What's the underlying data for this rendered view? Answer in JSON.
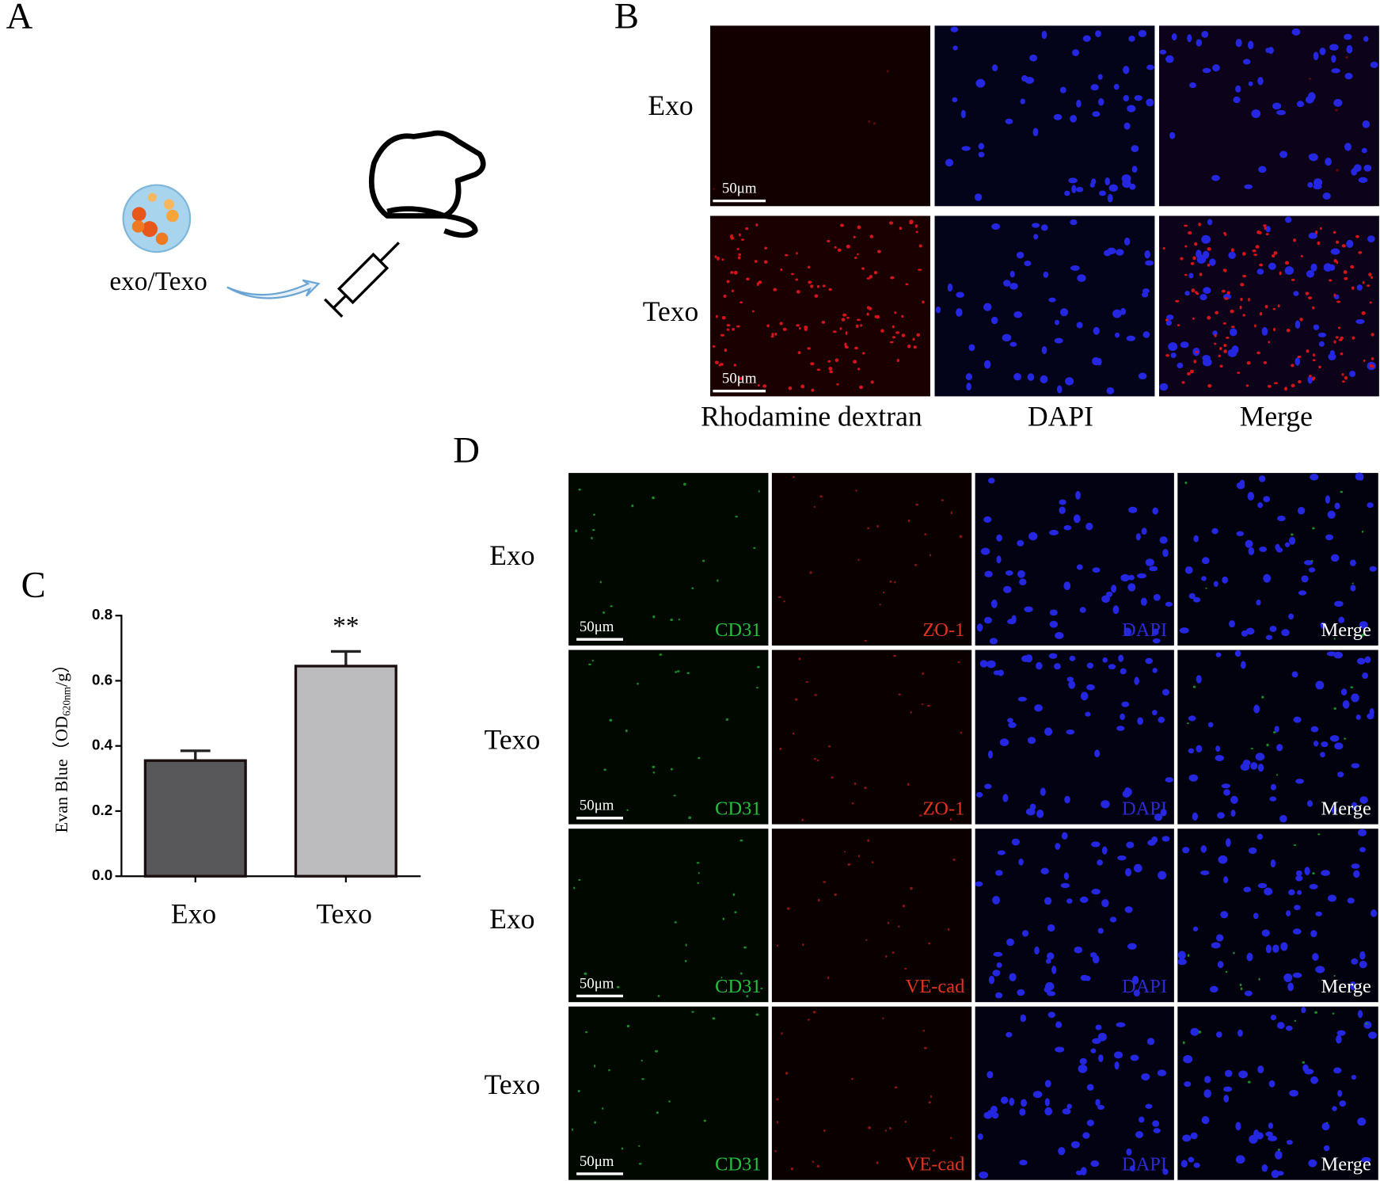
{
  "panels": {
    "letters": [
      "A",
      "B",
      "C",
      "D"
    ],
    "a": {
      "label": "exo/Texo"
    },
    "b": {
      "row_labels": [
        "Exo",
        "Texo"
      ],
      "column_labels": [
        "Rhodamine dextran",
        "DAPI",
        "Merge"
      ],
      "scale_bars": [
        "50μm",
        "50μm"
      ]
    },
    "d": {
      "channel_colors": [
        "#22c23c",
        "#e0341c",
        "#2b2bd6",
        "#ffffff"
      ],
      "rows": [
        {
          "label": "Exo",
          "channels": [
            "CD31",
            "ZO-1",
            "DAPI",
            "Merge"
          ],
          "scale_bar": "50μm"
        },
        {
          "label": "Texo",
          "channels": [
            "CD31",
            "ZO-1",
            "DAPI",
            "Merge"
          ],
          "scale_bar": "50μm"
        },
        {
          "label": "Exo",
          "channels": [
            "CD31",
            "VE-cad",
            "DAPI",
            "Merge"
          ],
          "scale_bar": "50μm"
        },
        {
          "label": "Texo",
          "channels": [
            "CD31",
            "VE-cad",
            "DAPI",
            "Merge"
          ],
          "scale_bar": "50μm"
        }
      ]
    }
  },
  "chart_data": {
    "type": "bar",
    "ylabel": [
      "Evan Blue（OD",
      "620nm",
      "/g）"
    ],
    "categories": [
      "Exo",
      "Texo"
    ],
    "values": [
      0.355,
      0.645
    ],
    "errors": [
      0.03,
      0.045
    ],
    "colors": [
      "#58585a",
      "#bcbcbe"
    ],
    "annotations": [
      "",
      "**"
    ],
    "ylim": [
      0,
      0.8
    ],
    "yticks": [
      {
        "value": 0,
        "label": "0.0"
      },
      0.2,
      0.4,
      0.6,
      0.8
    ]
  }
}
